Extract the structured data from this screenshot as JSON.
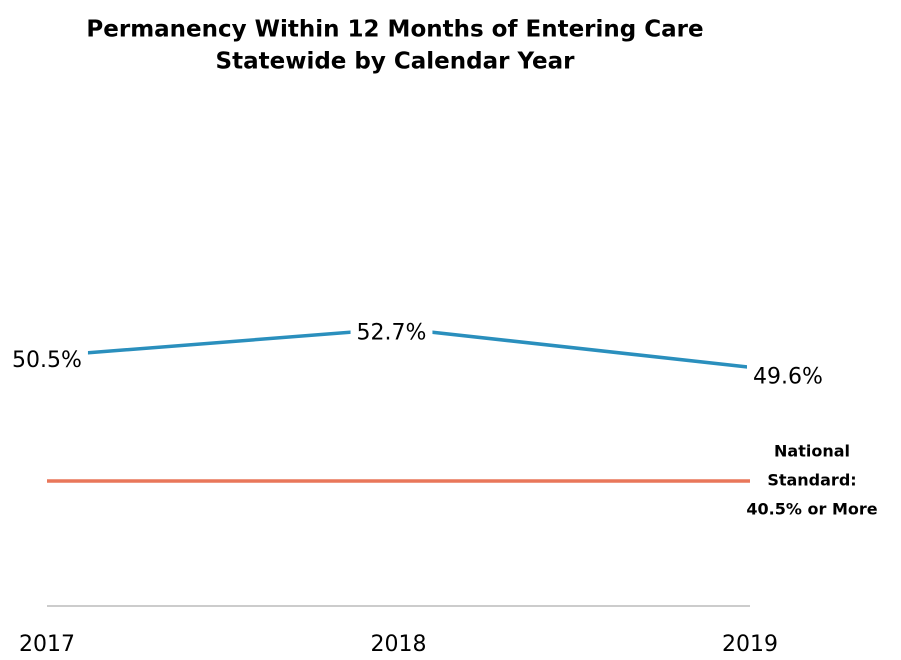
{
  "chart_data": {
    "type": "line",
    "title": [
      "Permanency Within 12 Months of Entering Care",
      "Statewide by Calendar Year"
    ],
    "categories": [
      "2017",
      "2018",
      "2019"
    ],
    "series": [
      {
        "name": "Statewide",
        "color": "#2a8fbd",
        "values": [
          50.5,
          52.7,
          49.6
        ],
        "value_labels": [
          "50.5%",
          "52.7%",
          "49.6%"
        ]
      },
      {
        "name": "National Standard",
        "color": "#e9775a",
        "values": [
          40.5,
          40.5,
          40.5
        ]
      }
    ],
    "annotation": [
      "National",
      "Standard:",
      "40.5% or More"
    ],
    "ylim": [
      30.5,
      70.5
    ],
    "legend": false
  }
}
